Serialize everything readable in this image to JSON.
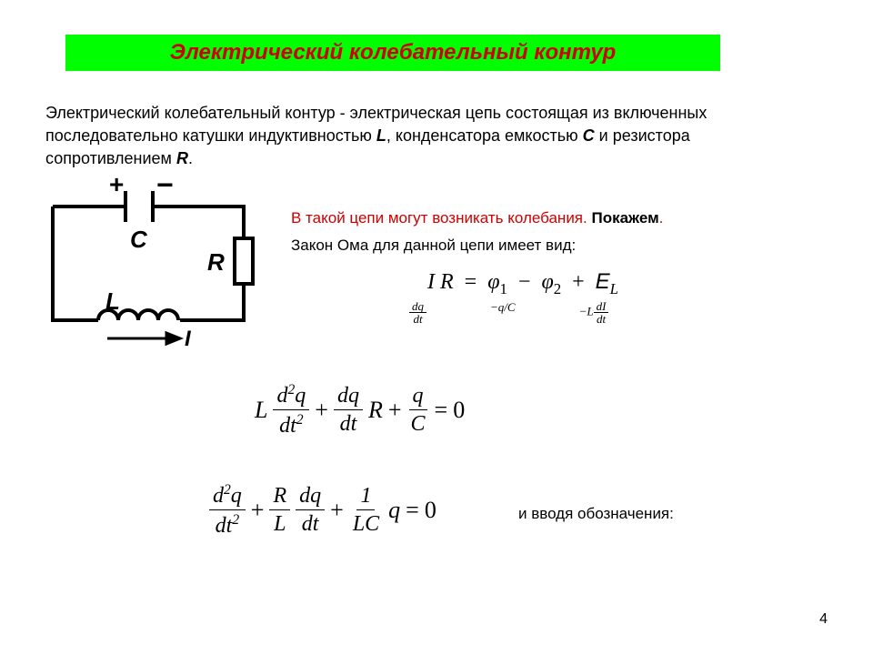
{
  "title": "Электрический колебательный контур",
  "definition_html": "Электрический колебательный контур - электрическая цепь состоящая из включенных последовательно катушки индуктивностью <b>L</b>, конденсатора емкостью <b>C</b> и резистора сопротивлением <b>R</b>.",
  "circuit": {
    "labels": {
      "plus": "+",
      "minus": "−",
      "C": "C",
      "R": "R",
      "L": "L",
      "I": "I"
    },
    "stroke_width": 4,
    "stroke_color": "#000000"
  },
  "red_line_html": "В такой цепи могут возникать колебания. <b>Покажем</b>.",
  "ohm_text": "Закон Ома для данной цепи имеет вид:",
  "eq1": {
    "main": "I R = φ₁ − φ₂ + E",
    "sub1_num": "dq",
    "sub1_den": "dt",
    "sub2": "−q/C",
    "sub3_pre": "−L",
    "sub3_num": "dI",
    "sub3_den": "dt",
    "lhs_I": "I",
    "lhs_R": "R",
    "eq": "=",
    "phi1": "φ",
    "s1": "1",
    "minus": "−",
    "phi2": "φ",
    "s2": "2",
    "plus": "+",
    "E": "E",
    "EL": "L"
  },
  "eq2": {
    "L": "L",
    "f1_num": "d²q",
    "f1_den": "dt²",
    "plus1": "+",
    "f2_num": "dq",
    "f2_den": "dt",
    "R": "R",
    "plus2": "+",
    "f3_num": "q",
    "f3_den": "C",
    "eq": "=",
    "zero": "0"
  },
  "eq3": {
    "f1_num": "d²q",
    "f1_den": "dt²",
    "plus1": "+",
    "f2_num": "R",
    "f2_den": "L",
    "f3_num": "dq",
    "f3_den": "dt",
    "plus2": "+",
    "f4_num": "1",
    "f4_den": "LC",
    "q": "q",
    "eq": "=",
    "zero": "0"
  },
  "notation": "и вводя обозначения:",
  "page_number": "4",
  "colors": {
    "title_bg": "#00ff00",
    "title_fg": "#d00000",
    "red_text": "#d00000",
    "body_text": "#000000",
    "background": "#ffffff"
  }
}
